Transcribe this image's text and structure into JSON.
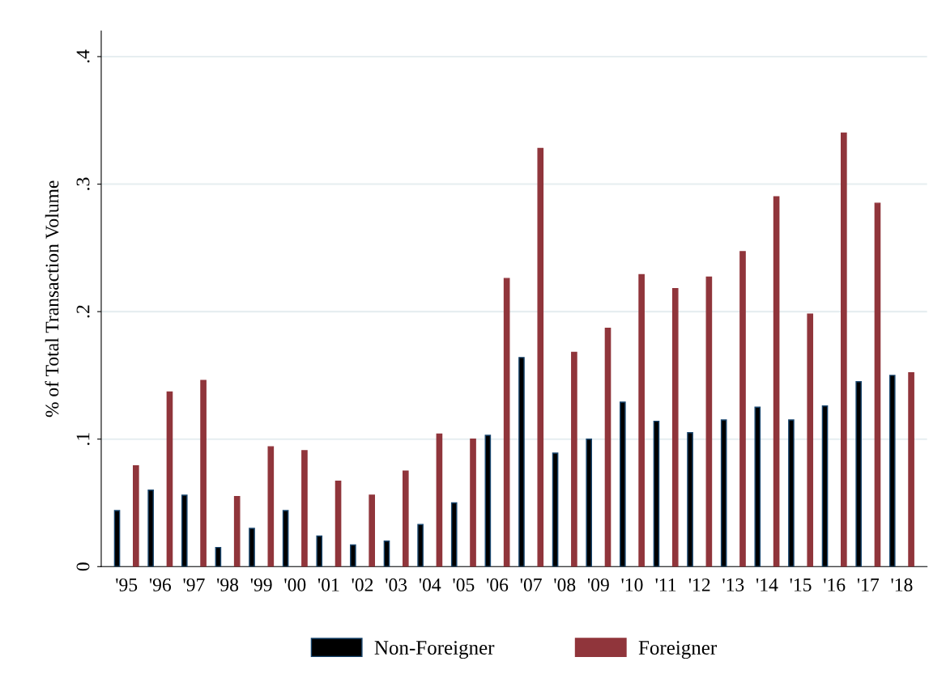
{
  "chart_data": {
    "type": "bar",
    "ylabel": "% of Total Transaction Volume",
    "categories": [
      "'95",
      "'96",
      "'97",
      "'98",
      "'99",
      "'00",
      "'01",
      "'02",
      "'03",
      "'04",
      "'05",
      "'06",
      "'07",
      "'08",
      "'09",
      "'10",
      "'11",
      "'12",
      "'13",
      "'14",
      "'15",
      "'16",
      "'17",
      "'18"
    ],
    "series": [
      {
        "name": "Non-Foreigner",
        "color": "#000000",
        "values": [
          0.044,
          0.06,
          0.056,
          0.015,
          0.03,
          0.044,
          0.024,
          0.017,
          0.02,
          0.033,
          0.05,
          0.103,
          0.164,
          0.089,
          0.1,
          0.129,
          0.114,
          0.105,
          0.115,
          0.125,
          0.115,
          0.126,
          0.145,
          0.15
        ]
      },
      {
        "name": "Foreigner",
        "color": "#90353b",
        "values": [
          0.079,
          0.137,
          0.146,
          0.055,
          0.094,
          0.091,
          0.067,
          0.056,
          0.075,
          0.104,
          0.1,
          0.226,
          0.328,
          0.168,
          0.187,
          0.229,
          0.218,
          0.227,
          0.247,
          0.29,
          0.198,
          0.34,
          0.285,
          0.152
        ]
      }
    ],
    "ylim": [
      0,
      0.42
    ],
    "yticks": [
      0,
      {
        "value": 0.1,
        "label": ".1"
      },
      {
        "value": 0.2,
        "label": ".2"
      },
      {
        "value": 0.3,
        "label": ".3"
      },
      {
        "value": 0.4,
        "label": ".4"
      }
    ],
    "grid": "y",
    "legend": "bottom"
  }
}
